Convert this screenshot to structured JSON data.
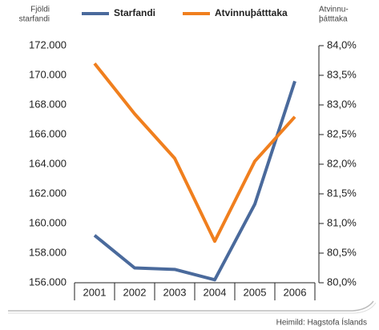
{
  "chart_data": {
    "type": "line",
    "categories": [
      "2001",
      "2002",
      "2003",
      "2004",
      "2005",
      "2006"
    ],
    "ylabel": [
      "Fjöldi",
      "starfandi"
    ],
    "y2label": [
      "Atvinnu-",
      "þátttaka"
    ],
    "series": [
      {
        "name": "Starfandi",
        "color": "#4a6a9c",
        "values": [
          159200,
          157000,
          156900,
          156200,
          161300,
          169600
        ]
      },
      {
        "name": "Atvinnuþátttaka",
        "color": "#f07f1e",
        "axis": "y2",
        "values": [
          83.7,
          82.85,
          82.1,
          80.7,
          82.05,
          82.8
        ]
      }
    ],
    "ylim": [
      156000,
      172000
    ],
    "yticks": [
      {
        "value": 156000,
        "label": "156.000"
      },
      {
        "value": 158000,
        "label": "158.000"
      },
      {
        "value": 160000,
        "label": "160.000"
      },
      {
        "value": 162000,
        "label": "162.000"
      },
      {
        "value": 164000,
        "label": "164.000"
      },
      {
        "value": 166000,
        "label": "166.000"
      },
      {
        "value": 168000,
        "label": "168.000"
      },
      {
        "value": 170000,
        "label": "170.000"
      },
      {
        "value": 172000,
        "label": "172.000"
      }
    ],
    "y2lim": [
      80,
      84
    ],
    "y2ticks": [
      {
        "value": 80,
        "label": "80,0%"
      },
      {
        "value": 80.5,
        "label": "80,5%"
      },
      {
        "value": 81,
        "label": "81,0%"
      },
      {
        "value": 81.5,
        "label": "81,5%"
      },
      {
        "value": 82,
        "label": "82,0%"
      },
      {
        "value": 82.5,
        "label": "82,5%"
      },
      {
        "value": 83,
        "label": "83,0%"
      },
      {
        "value": 83.5,
        "label": "83,5%"
      },
      {
        "value": 84,
        "label": "84,0%"
      }
    ],
    "source": "Heimild: Hagstofa Íslands"
  }
}
